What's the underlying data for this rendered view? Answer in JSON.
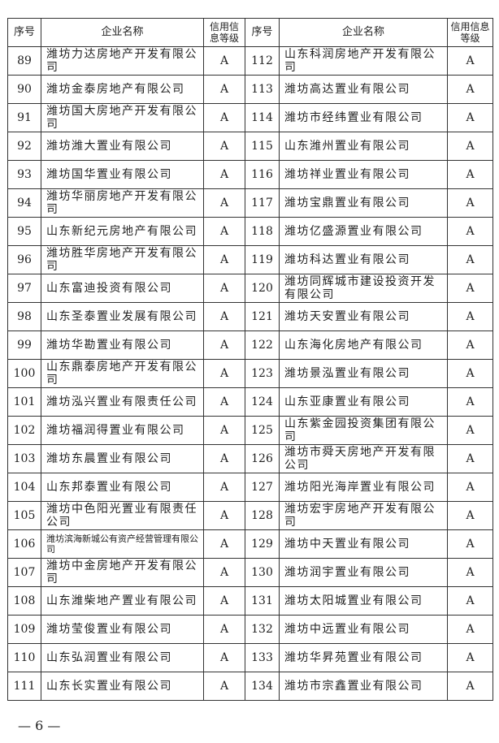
{
  "table": {
    "header": [
      "序号",
      "企业名称",
      "信用信息等级",
      "序号",
      "企业名称",
      "信用信息等级"
    ],
    "rows": [
      [
        89,
        "潍坊力达房地产开发有限公司",
        "A",
        112,
        "山东科润房地产开发有限公司",
        "A"
      ],
      [
        90,
        "潍坊金泰房地产有限公司",
        "A",
        113,
        "潍坊高达置业有限公司",
        "A"
      ],
      [
        91,
        "潍坊国大房地产开发有限公司",
        "A",
        114,
        "潍坊市经纬置业有限公司",
        "A"
      ],
      [
        92,
        "潍坊潍大置业有限公司",
        "A",
        115,
        "山东潍州置业有限公司",
        "A"
      ],
      [
        93,
        "潍坊国华置业有限公司",
        "A",
        116,
        "潍坊祥业置业有限公司",
        "A"
      ],
      [
        94,
        "潍坊华丽房地产开发有限公司",
        "A",
        117,
        "潍坊宝鼎置业有限公司",
        "A"
      ],
      [
        95,
        "山东新纪元房地产有限公司",
        "A",
        118,
        "潍坊亿盛源置业有限公司",
        "A"
      ],
      [
        96,
        "潍坊胜华房地产开发有限公司",
        "A",
        119,
        "潍坊科达置业有限公司",
        "A"
      ],
      [
        97,
        "山东富迪投资有限公司",
        "A",
        120,
        "潍坊同辉城市建设投资开发有限公司",
        "A"
      ],
      [
        98,
        "山东圣泰置业发展有限公司",
        "A",
        121,
        "潍坊天安置业有限公司",
        "A"
      ],
      [
        99,
        "潍坊华勘置业有限公司",
        "A",
        122,
        "山东海化房地产有限公司",
        "A"
      ],
      [
        100,
        "山东鼎泰房地产开发有限公司",
        "A",
        123,
        "潍坊景泓置业有限公司",
        "A"
      ],
      [
        101,
        "潍坊泓兴置业有限责任公司",
        "A",
        124,
        "山东亚康置业有限公司",
        "A"
      ],
      [
        102,
        "潍坊福润得置业有限公司",
        "A",
        125,
        "山东紫金园投资集团有限公司",
        "A"
      ],
      [
        103,
        "潍坊东晨置业有限公司",
        "A",
        126,
        "潍坊市舜天房地产开发有限公司",
        "A"
      ],
      [
        104,
        "山东邦泰置业有限公司",
        "A",
        127,
        "潍坊阳光海岸置业有限公司",
        "A"
      ],
      [
        105,
        "潍坊中色阳光置业有限责任公司",
        "A",
        128,
        "潍坊宏宇房地产开发有限公司",
        "A"
      ],
      [
        106,
        "潍坊滨海新城公有资产经营管理有限公司",
        "A",
        129,
        "潍坊中天置业有限公司",
        "A"
      ],
      [
        107,
        "潍坊中金房地产开发有限公司",
        "A",
        130,
        "潍坊润宇置业有限公司",
        "A"
      ],
      [
        108,
        "山东潍柴地产置业有限公司",
        "A",
        131,
        "潍坊太阳城置业有限公司",
        "A"
      ],
      [
        109,
        "潍坊莹俊置业有限公司",
        "A",
        132,
        "潍坊中远置业有限公司",
        "A"
      ],
      [
        110,
        "山东弘润置业有限公司",
        "A",
        133,
        "潍坊华昇苑置业有限公司",
        "A"
      ],
      [
        111,
        "山东长实置业有限公司",
        "A",
        134,
        "潍坊市宗鑫置业有限公司",
        "A"
      ]
    ]
  },
  "footer": "— 6 —"
}
